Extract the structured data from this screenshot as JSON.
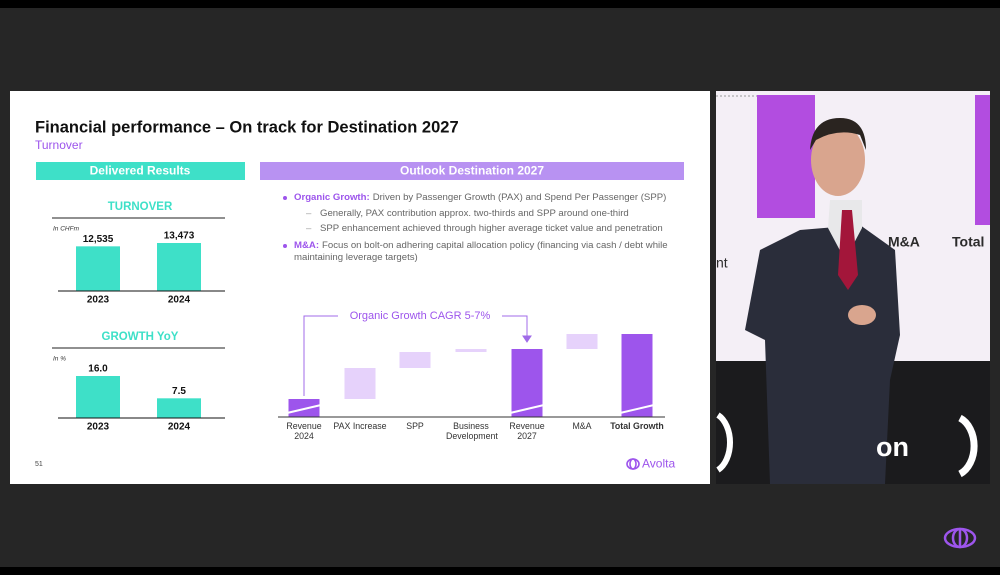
{
  "screen": {
    "slide": {
      "title": "Financial performance – On track for Destination 2027",
      "subtitle": "Turnover",
      "page_number": "51",
      "logo": "Avolta",
      "left_header": "Delivered Results",
      "right_header": "Outlook Destination 2027",
      "bullets": [
        {
          "lead": "Organic Growth:",
          "text": "Driven by Passenger Growth (PAX) and Spend Per Passenger (SPP)",
          "sub": [
            "Generally, PAX contribution approx. two-thirds and SPP around one-third",
            "SPP enhancement achieved through higher average ticket value and penetration"
          ]
        },
        {
          "lead": "M&A:",
          "text": "Focus on bolt-on adhering capital allocation policy (financing via cash / debt while maintaining leverage targets)",
          "sub": []
        }
      ]
    },
    "chart_data": [
      {
        "type": "bar",
        "title": "TURNOVER",
        "unit_note": "In CHFm",
        "categories": [
          "2023",
          "2024"
        ],
        "values": [
          12535,
          13473
        ],
        "value_labels": [
          "12,535",
          "13,473"
        ],
        "color": "#3ee0c8"
      },
      {
        "type": "bar",
        "title": "GROWTH YoY",
        "unit_note": "In %",
        "categories": [
          "2023",
          "2024"
        ],
        "values": [
          16.0,
          7.5
        ],
        "value_labels": [
          "16.0",
          "7.5"
        ],
        "color": "#3ee0c8"
      },
      {
        "type": "waterfall",
        "annotation": "Organic Growth CAGR 5-7%",
        "categories": [
          "Revenue 2024",
          "PAX Increase",
          "SPP",
          "Business Development",
          "Revenue 2027",
          "M&A",
          "Total Growth"
        ],
        "values": [
          18,
          31,
          16,
          3,
          68,
          15,
          83
        ],
        "measures": [
          "absolute",
          "relative",
          "relative",
          "relative",
          "absolute",
          "relative",
          "absolute"
        ],
        "colors": {
          "absolute": "#9d55ec",
          "relative": "#e6d2fb"
        }
      }
    ],
    "video": {
      "background_texts": [
        "M&A",
        "Total",
        "nt",
        "on"
      ]
    }
  }
}
